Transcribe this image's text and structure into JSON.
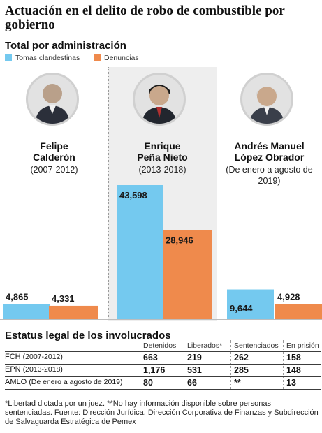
{
  "header": {
    "title": "Actuación en el delito de robo de combustible por gobierno",
    "subtitle": "Total por administración"
  },
  "legend": {
    "tomas": "Tomas clandestinas",
    "denuncias": "Denuncias"
  },
  "colors": {
    "tomas": "#74c9ef",
    "denuncias": "#ef8a4c",
    "column_bg": "#eeeeee"
  },
  "presidents": [
    {
      "name_line1": "Felipe",
      "name_line2": "Calderón",
      "period": "(2007-2012)",
      "period_line2": ""
    },
    {
      "name_line1": "Enrique",
      "name_line2": "Peña Nieto",
      "period": "(2013-2018)",
      "period_line2": ""
    },
    {
      "name_line1": "Andrés Manuel",
      "name_line2": "López Obrador",
      "period": "(De enero a agosto de",
      "period_line2": "2019)"
    }
  ],
  "chart_data": {
    "type": "bar",
    "title": "Actuación en el delito de robo de combustible por gobierno",
    "subtitle": "Total por administración",
    "categories": [
      "Felipe Calderón (2007-2012)",
      "Enrique Peña Nieto (2013-2018)",
      "Andrés Manuel López Obrador (De enero a agosto de 2019)"
    ],
    "series": [
      {
        "name": "Tomas clandestinas",
        "values": [
          4865,
          43598,
          9644
        ],
        "labels": [
          "4,865",
          "43,598",
          "9,644"
        ]
      },
      {
        "name": "Denuncias",
        "values": [
          4331,
          28946,
          4928
        ],
        "labels": [
          "4,331",
          "28,946",
          "4,928"
        ]
      }
    ],
    "ylim": [
      0,
      43598
    ],
    "legend_position": "top-left",
    "grid": false
  },
  "table": {
    "title": "Estatus legal de los involucrados",
    "headers": [
      "Detenidos",
      "Liberados*",
      "Sentenciados",
      "En prisión"
    ],
    "rows": [
      {
        "label": "FCH",
        "sub": "(2007-2012)",
        "values": [
          "663",
          "219",
          "262",
          "158"
        ]
      },
      {
        "label": "EPN",
        "sub": "(2013-2018)",
        "values": [
          "1,176",
          "531",
          "285",
          "148"
        ]
      },
      {
        "label": "AMLO",
        "sub": "(De enero a agosto de 2019)",
        "values": [
          "80",
          "66",
          "**",
          "13"
        ]
      }
    ]
  },
  "footnote": "*Libertad dictada por un juez. **No hay información disponible sobre personas sentenciadas. Fuente: Dirección Jurídica, Dirección Corporativa de Finanzas y Subdirección de Salvaguarda Estratégica de Pemex"
}
